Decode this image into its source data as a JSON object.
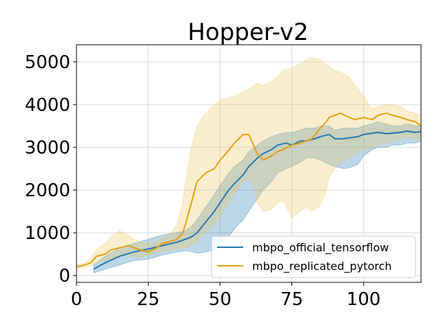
{
  "chart_data": {
    "type": "line",
    "title": "Hopper-v2",
    "xlabel": "",
    "ylabel": "",
    "xlim": [
      0,
      120
    ],
    "ylim": [
      -160,
      5400
    ],
    "xticks": [
      0,
      25,
      50,
      75,
      100
    ],
    "yticks": [
      0,
      1000,
      2000,
      3000,
      4000,
      5000
    ],
    "xtick_labels": [
      "0",
      "25",
      "50",
      "75",
      "100"
    ],
    "ytick_labels": [
      "0",
      "1000",
      "2000",
      "3000",
      "4000",
      "5000"
    ],
    "grid": true,
    "legend_position": "lower-right",
    "series": [
      {
        "name": "mbpo_official_tensorflow",
        "color": "#1f77b4",
        "band_color": "#1f77b4",
        "x": [
          6,
          10,
          15,
          20,
          25,
          30,
          35,
          38,
          40,
          42,
          45,
          48,
          50,
          53,
          55,
          58,
          60,
          63,
          65,
          68,
          70,
          73,
          75,
          78,
          80,
          83,
          85,
          88,
          90,
          93,
          95,
          98,
          100,
          103,
          105,
          108,
          110,
          113,
          115,
          118,
          120
        ],
        "y": [
          150,
          300,
          450,
          550,
          620,
          700,
          780,
          850,
          900,
          1000,
          1250,
          1500,
          1700,
          2000,
          2150,
          2350,
          2550,
          2750,
          2850,
          2950,
          3050,
          3100,
          3050,
          3150,
          3150,
          3200,
          3250,
          3300,
          3200,
          3200,
          3220,
          3250,
          3300,
          3330,
          3350,
          3320,
          3330,
          3350,
          3380,
          3350,
          3370
        ],
        "lower": [
          60,
          150,
          250,
          350,
          380,
          480,
          550,
          580,
          560,
          520,
          550,
          600,
          700,
          900,
          1100,
          1300,
          1500,
          1800,
          2000,
          2200,
          2400,
          2500,
          2550,
          2650,
          2750,
          2750,
          2700,
          2600,
          2550,
          2500,
          2520,
          2600,
          2800,
          2950,
          3000,
          3000,
          3050,
          3050,
          3100,
          3100,
          3150
        ],
        "upper": [
          250,
          450,
          650,
          750,
          850,
          950,
          1000,
          1050,
          1150,
          1300,
          1600,
          1900,
          2100,
          2400,
          2550,
          2700,
          2900,
          3050,
          3150,
          3250,
          3300,
          3350,
          3350,
          3400,
          3450,
          3450,
          3500,
          3500,
          3400,
          3450,
          3450,
          3450,
          3500,
          3550,
          3600,
          3550,
          3500,
          3500,
          3550,
          3500,
          3500
        ]
      },
      {
        "name": "mbpo_replicated_pytorch",
        "color": "#e3a008",
        "band_color": "#f0c85a",
        "x": [
          0,
          3,
          5,
          7,
          10,
          12,
          15,
          18,
          20,
          22,
          25,
          28,
          30,
          33,
          35,
          37,
          38,
          40,
          42,
          45,
          48,
          50,
          52,
          55,
          58,
          60,
          62,
          63,
          65,
          68,
          70,
          72,
          75,
          78,
          80,
          82,
          85,
          87,
          88,
          90,
          92,
          95,
          97,
          100,
          103,
          105,
          108,
          110,
          113,
          115,
          118,
          120
        ],
        "y": [
          200,
          250,
          300,
          450,
          500,
          600,
          650,
          700,
          650,
          600,
          550,
          650,
          750,
          800,
          850,
          1000,
          1200,
          1700,
          2200,
          2400,
          2500,
          2700,
          2850,
          3100,
          3300,
          3300,
          3000,
          2850,
          2700,
          2800,
          2900,
          2950,
          3050,
          3100,
          3150,
          3200,
          3450,
          3600,
          3700,
          3750,
          3800,
          3700,
          3650,
          3700,
          3650,
          3750,
          3800,
          3750,
          3700,
          3650,
          3600,
          3500
        ],
        "lower": [
          180,
          200,
          220,
          300,
          350,
          400,
          450,
          500,
          450,
          420,
          480,
          530,
          580,
          600,
          620,
          650,
          650,
          700,
          800,
          1000,
          1200,
          1400,
          1600,
          1900,
          2200,
          2300,
          2000,
          1700,
          1500,
          1550,
          1700,
          1750,
          1350,
          1500,
          1600,
          1500,
          1650,
          2000,
          2300,
          2500,
          2650,
          2750,
          2850,
          2950,
          3000,
          3050,
          3100,
          3150,
          3200,
          3250,
          3200,
          3150
        ],
        "upper": [
          250,
          300,
          400,
          600,
          750,
          900,
          1050,
          950,
          850,
          800,
          750,
          800,
          900,
          1000,
          1200,
          1700,
          2200,
          3000,
          3500,
          3800,
          4000,
          4100,
          4150,
          4200,
          4300,
          4350,
          4450,
          4500,
          4450,
          4550,
          4650,
          4800,
          4850,
          4950,
          5050,
          5100,
          5050,
          4950,
          4900,
          4800,
          4750,
          4650,
          4450,
          4200,
          3900,
          3950,
          4000,
          4000,
          3950,
          3850,
          3800,
          3750
        ]
      }
    ]
  }
}
